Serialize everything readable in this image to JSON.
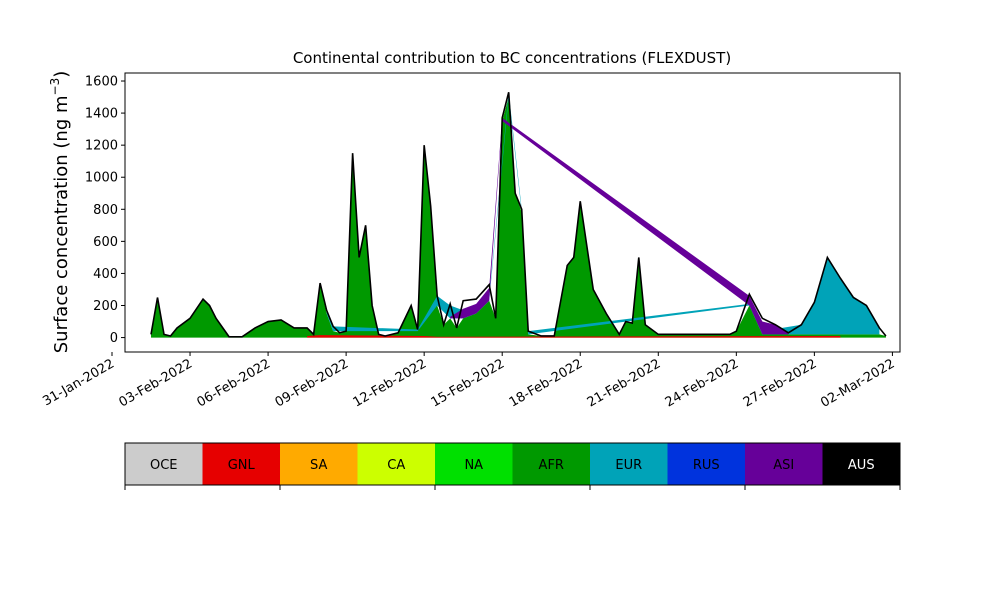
{
  "chart_data": {
    "type": "area",
    "title": "Continental contribution to BC concentrations (FLEXDUST)",
    "ylabel_main": "Surface concentration (ng m",
    "ylabel_sup": "−3",
    "ylabel_tail": ")",
    "xlabel": "",
    "ylim": [
      -90,
      1650
    ],
    "xlim": [
      "2022-01-31T12:00",
      "2022-03-02T07:00"
    ],
    "y_ticks": [
      "0",
      "200",
      "400",
      "600",
      "800",
      "1000",
      "1200",
      "1400",
      "1600"
    ],
    "x_ticks": [
      "31-Jan-2022",
      "03-Feb-2022",
      "06-Feb-2022",
      "09-Feb-2022",
      "12-Feb-2022",
      "15-Feb-2022",
      "18-Feb-2022",
      "21-Feb-2022",
      "24-Feb-2022",
      "27-Feb-2022",
      "02-Mar-2022"
    ],
    "legend": [
      {
        "label": "OCE",
        "color": "#cccccc"
      },
      {
        "label": "GNL",
        "color": "#e60000"
      },
      {
        "label": "SA",
        "color": "#ffaa00"
      },
      {
        "label": "CA",
        "color": "#ccff00"
      },
      {
        "label": "NA",
        "color": "#00e000"
      },
      {
        "label": "AFR",
        "color": "#009900"
      },
      {
        "label": "EUR",
        "color": "#00a3b8"
      },
      {
        "label": "RUS",
        "color": "#0033dd"
      },
      {
        "label": "ASI",
        "color": "#660099"
      },
      {
        "label": "AUS",
        "color": "#000000"
      }
    ],
    "series": [
      {
        "name": "AFR",
        "color": "#009900",
        "x": [
          "2022-02-01T12:00",
          "2022-02-01T18:00",
          "2022-02-02T00:00",
          "2022-02-02T06:00",
          "2022-02-02T12:00",
          "2022-02-03T00:00",
          "2022-02-03T12:00",
          "2022-02-03T18:00",
          "2022-02-04T00:00",
          "2022-02-04T12:00",
          "2022-02-05T00:00",
          "2022-02-05T12:00",
          "2022-02-06T00:00",
          "2022-02-06T12:00",
          "2022-02-07T00:00",
          "2022-02-07T12:00",
          "2022-02-07T18:00",
          "2022-02-08T00:00",
          "2022-02-08T06:00",
          "2022-02-08T12:00",
          "2022-02-08T18:00",
          "2022-02-09T00:00",
          "2022-02-09T06:00",
          "2022-02-09T12:00",
          "2022-02-09T18:00",
          "2022-02-10T00:00",
          "2022-02-10T06:00",
          "2022-02-10T12:00",
          "2022-02-11T00:00",
          "2022-02-11T12:00",
          "2022-02-11T18:00",
          "2022-02-12T00:00",
          "2022-02-12T06:00",
          "2022-02-12T12:00",
          "2022-02-12T18:00",
          "2022-02-13T00:00",
          "2022-02-13T06:00",
          "2022-02-13T12:00",
          "2022-02-14T00:00",
          "2022-02-14T12:00",
          "2022-02-14T18:00",
          "2022-02-15T00:00",
          "2022-02-15T06:00",
          "2022-02-15T12:00",
          "2022-02-15T18:00",
          "2022-02-16T00:00",
          "2022-02-16T12:00",
          "2022-02-17T00:00",
          "2022-02-17T12:00",
          "2022-02-17T18:00",
          "2022-02-18T00:00",
          "2022-02-18T12:00",
          "2022-02-19T00:00",
          "2022-02-19T12:00",
          "2022-02-19T18:00",
          "2022-02-20T00:00",
          "2022-02-20T06:00",
          "2022-02-20T12:00",
          "2022-02-21T00:00",
          "2022-02-21T12:00",
          "2022-02-22T00:00",
          "2022-02-22T12:00",
          "2022-02-23T00:00",
          "2022-02-23T12:00",
          "2022-02-23T18:00",
          "2022-02-24T00:00",
          "2022-02-24T12:00",
          "2022-02-25T00:00",
          "2022-02-25T12:00",
          "2022-02-26T00:00",
          "2022-02-26T12:00",
          "2022-02-27T00:00",
          "2022-02-27T12:00",
          "2022-02-28T00:00",
          "2022-02-28T12:00",
          "2022-03-01T00:00",
          "2022-03-01T12:00",
          "2022-03-01T18:00"
        ],
        "values": [
          20,
          250,
          20,
          10,
          60,
          120,
          240,
          200,
          120,
          5,
          5,
          60,
          100,
          110,
          60,
          60,
          20,
          340,
          150,
          40,
          30,
          40,
          1150,
          500,
          700,
          200,
          20,
          10,
          30,
          200,
          40,
          1200,
          820,
          200,
          80,
          120,
          60,
          120,
          150,
          230,
          120,
          1350,
          1500,
          900,
          780,
          20,
          10,
          10,
          450,
          500,
          850,
          300,
          150,
          20,
          100,
          90,
          500,
          80,
          20,
          20,
          20,
          20,
          20,
          20,
          20,
          40,
          200,
          20,
          20,
          20,
          20,
          20,
          20,
          20,
          20,
          20,
          20,
          10
        ]
      },
      {
        "name": "EUR",
        "color": "#00a3b8",
        "x": [
          "2022-02-08T06:00",
          "2022-02-08T12:00",
          "2022-02-11T18:00",
          "2022-02-12T12:00",
          "2022-02-13T00:00",
          "2022-02-13T12:00",
          "2022-02-14T00:00",
          "2022-02-14T12:00",
          "2022-02-15T06:00",
          "2022-02-15T18:00",
          "2022-02-16T00:00",
          "2022-02-24T12:00",
          "2022-02-25T00:00",
          "2022-02-26T12:00",
          "2022-02-27T00:00",
          "2022-02-27T12:00",
          "2022-02-28T00:00",
          "2022-02-28T12:00",
          "2022-03-01T00:00",
          "2022-03-01T12:00"
        ],
        "values": [
          20,
          30,
          10,
          60,
          80,
          50,
          30,
          20,
          30,
          20,
          20,
          10,
          20,
          60,
          200,
          480,
          350,
          230,
          180,
          40
        ]
      },
      {
        "name": "ASI",
        "color": "#660099",
        "x": [
          "2022-02-13T00:00",
          "2022-02-13T12:00",
          "2022-02-14T00:00",
          "2022-02-14T12:00",
          "2022-02-15T00:00",
          "2022-02-24T12:00",
          "2022-02-25T00:00",
          "2022-02-25T12:00",
          "2022-02-26T00:00"
        ],
        "values": [
          10,
          60,
          60,
          80,
          20,
          60,
          80,
          60,
          10
        ]
      },
      {
        "name": "GNL",
        "color": "#e60000",
        "x": [
          "2022-02-07T12:00",
          "2022-02-08T00:00",
          "2022-02-12T00:00",
          "2022-02-12T12:00",
          "2022-02-27T12:00",
          "2022-02-28T00:00"
        ],
        "values": [
          10,
          15,
          10,
          5,
          10,
          10
        ]
      }
    ]
  }
}
